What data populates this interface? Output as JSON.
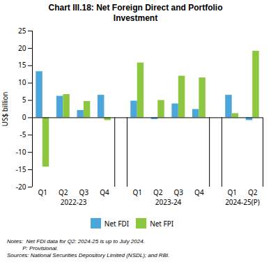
{
  "chart_data": {
    "type": "bar",
    "title": "Chart III.18: Net Foreign Direct and Portfolio\nInvestment",
    "ylabel": "US$ billion",
    "categories": [
      "Q1",
      "Q2",
      "Q3",
      "Q4",
      "Q1",
      "Q2",
      "Q3",
      "Q4",
      "Q1",
      "Q2"
    ],
    "category_groups": [
      "2022-23",
      "2022-23",
      "2022-23",
      "2022-23",
      "2023-24",
      "2023-24",
      "2023-24",
      "2023-24",
      "2024-25(P)",
      "2024-25(P)"
    ],
    "series": [
      {
        "name": "Net FDI",
        "color": "#4da6d9",
        "values": [
          13.3,
          6.2,
          2.1,
          6.5,
          4.8,
          -0.5,
          4.0,
          2.4,
          6.5,
          -0.8
        ]
      },
      {
        "name": "Net FPI",
        "color": "#8dc63f",
        "values": [
          -14.2,
          6.7,
          4.7,
          -0.8,
          15.8,
          5.0,
          12.0,
          11.5,
          1.2,
          19.2
        ]
      }
    ],
    "ylim": [
      -20,
      25
    ],
    "yticks": [
      -20,
      -15,
      -10,
      -5,
      0,
      5,
      10,
      15,
      20,
      25
    ],
    "legend": "bottom",
    "annotations": [
      "Notes:  Net FDI data for Q2: 2024-25 is up to July 2024.",
      "          P: Provisional.",
      "Sources: National Securities Depository Limited (NSDL); and RBI."
    ]
  }
}
